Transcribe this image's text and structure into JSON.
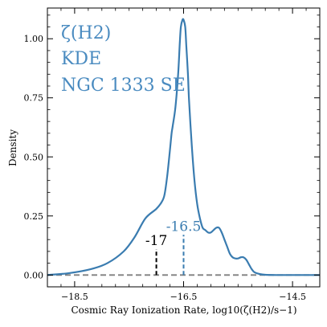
{
  "chart_data": {
    "type": "line",
    "xlabel": "Cosmic Ray Ionization Rate, log10(ζ(H2)/s−1)",
    "ylabel": "Density",
    "xlim": [
      -19.0,
      -14.0
    ],
    "ylim": [
      -0.05,
      1.13
    ],
    "x_ticks": [
      -18.5,
      -16.5,
      -14.5
    ],
    "x_tick_labels": [
      "−18.5",
      "−16.5",
      "−14.5"
    ],
    "y_ticks": [
      0.0,
      0.25,
      0.5,
      0.75,
      1.0
    ],
    "y_tick_labels": [
      "0.00",
      "0.25",
      "0.50",
      "0.75",
      "1.00"
    ],
    "annotations": [
      "ζ(H2)",
      "KDE",
      "NGC 1333 SE"
    ],
    "series": [
      {
        "color": "#3a7cb0",
        "x": [
          -19.0,
          -18.6,
          -18.2,
          -17.9,
          -17.6,
          -17.4,
          -17.2,
          -17.0,
          -16.9,
          -16.85,
          -16.8,
          -16.75,
          -16.72,
          -16.7,
          -16.65,
          -16.6,
          -16.57,
          -16.55,
          -16.52,
          -16.5,
          -16.47,
          -16.45,
          -16.42,
          -16.4,
          -16.35,
          -16.3,
          -16.25,
          -16.2,
          -16.15,
          -16.1,
          -16.05,
          -16.0,
          -15.95,
          -15.9,
          -15.85,
          -15.8,
          -15.75,
          -15.7,
          -15.65,
          -15.6,
          -15.55,
          -15.5,
          -15.45,
          -15.4,
          -15.35,
          -15.3,
          -15.25,
          -15.2,
          -15.1,
          -15.0,
          -14.8,
          -14.5,
          -14.0
        ],
        "y": [
          0.0,
          0.008,
          0.025,
          0.05,
          0.1,
          0.16,
          0.24,
          0.28,
          0.31,
          0.34,
          0.42,
          0.53,
          0.6,
          0.63,
          0.71,
          0.85,
          0.98,
          1.05,
          1.08,
          1.08,
          1.05,
          0.97,
          0.85,
          0.74,
          0.55,
          0.4,
          0.3,
          0.24,
          0.2,
          0.19,
          0.18,
          0.18,
          0.19,
          0.2,
          0.2,
          0.18,
          0.15,
          0.12,
          0.09,
          0.075,
          0.07,
          0.07,
          0.075,
          0.075,
          0.065,
          0.045,
          0.025,
          0.012,
          0.004,
          0.001,
          0.0,
          0.0,
          0.0
        ]
      }
    ],
    "baseline": {
      "y": 0.0,
      "color": "#7f7f7f",
      "style": "dashed"
    },
    "markers": [
      {
        "x": -17.0,
        "label": "-17",
        "color": "#000000",
        "height": 0.11,
        "style": "dashed"
      },
      {
        "x": -16.5,
        "label": "-16.5",
        "color": "#3a7cb0",
        "height": 0.17,
        "style": "dashed"
      }
    ]
  }
}
